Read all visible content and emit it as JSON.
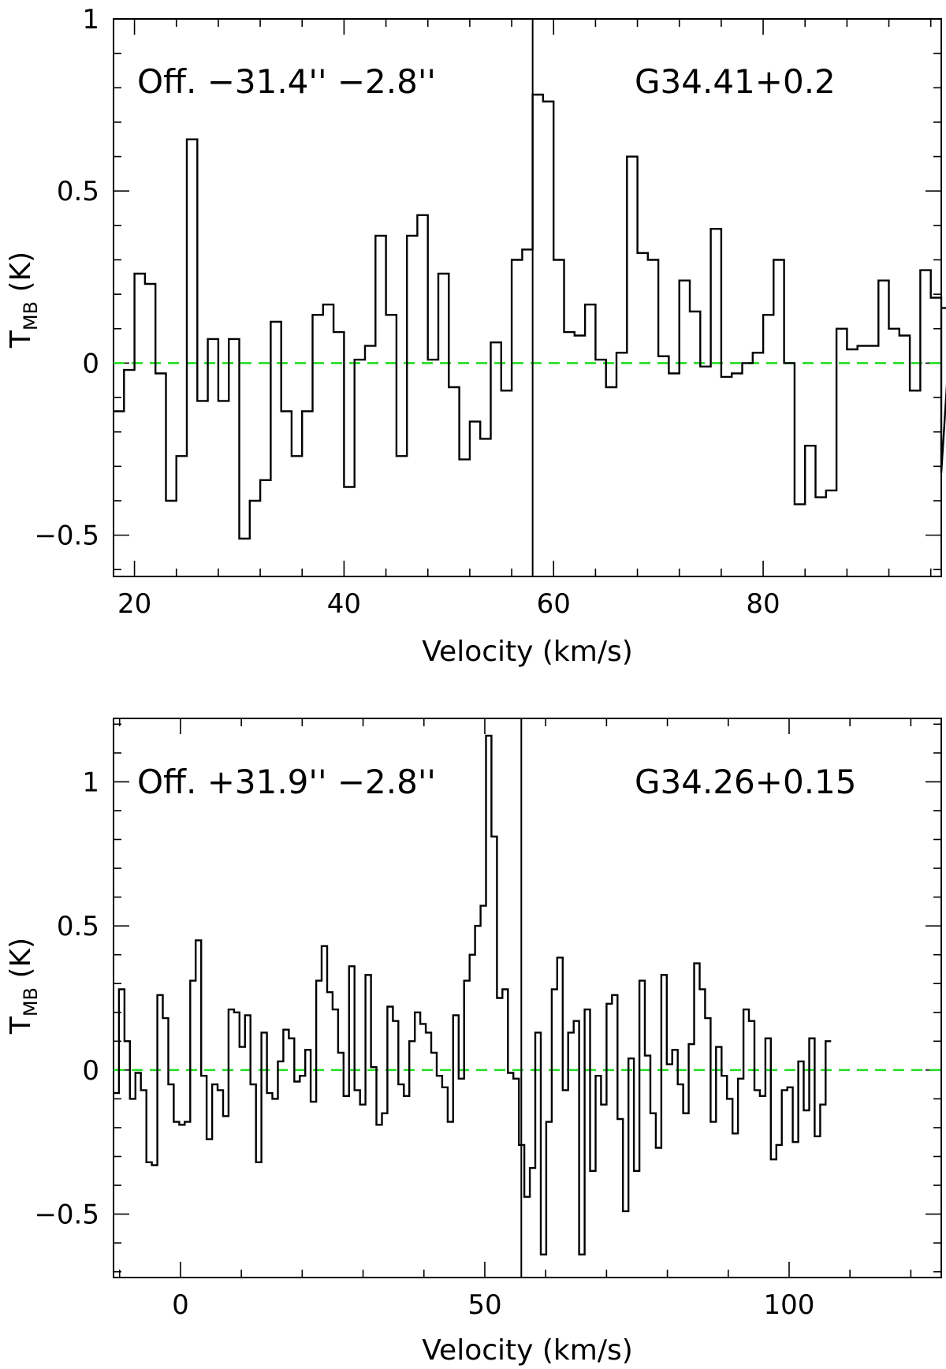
{
  "chart_data": [
    {
      "type": "line",
      "subtype": "step-spectrum",
      "xlabel": "Velocity (km/s)",
      "ylabel": "T",
      "ylabel_sub": "MB",
      "ylabel_unit": " (K)",
      "xlim": [
        18,
        97
      ],
      "ylim": [
        -0.62,
        1.0
      ],
      "x_ticks": [
        20,
        40,
        60,
        80
      ],
      "y_ticks": [
        -0.5,
        0,
        0.5,
        1
      ],
      "y_tick_labels": [
        "−0.5",
        "0",
        "0.5",
        "1"
      ],
      "annotation_left": "Off. −31.4'' −2.8''",
      "annotation_right": "G34.41+0.2",
      "vline_x": 58,
      "baseline_y": 0,
      "baseline_color": "#22dd22",
      "x_start": 18,
      "step": 1,
      "values": [
        -0.14,
        -0.02,
        0.26,
        0.23,
        -0.03,
        -0.4,
        -0.27,
        0.65,
        -0.11,
        0.07,
        -0.11,
        0.07,
        -0.51,
        -0.4,
        -0.34,
        0.12,
        -0.14,
        -0.27,
        -0.14,
        0.14,
        0.17,
        0.09,
        -0.36,
        0.01,
        0.05,
        0.37,
        0.14,
        -0.27,
        0.37,
        0.43,
        0.01,
        0.26,
        -0.07,
        -0.28,
        -0.17,
        -0.22,
        0.06,
        -0.08,
        0.3,
        0.33,
        0.78,
        0.76,
        0.3,
        0.09,
        0.08,
        0.17,
        0.01,
        -0.07,
        0.03,
        0.6,
        0.32,
        0.3,
        0.02,
        -0.03,
        0.24,
        0.15,
        -0.01,
        0.39,
        -0.04,
        -0.03,
        0.0,
        0.03,
        0.14,
        0.3,
        0.0,
        -0.41,
        -0.24,
        -0.39,
        -0.37,
        0.1,
        0.04,
        0.05,
        0.05,
        0.24,
        0.1,
        0.08,
        -0.08,
        0.27,
        0.19,
        -0.32,
        0.16
      ]
    },
    {
      "type": "line",
      "subtype": "step-spectrum",
      "xlabel": "Velocity (km/s)",
      "ylabel": "T",
      "ylabel_sub": "MB",
      "ylabel_unit": " (K)",
      "xlim": [
        -11,
        125
      ],
      "ylim": [
        -0.72,
        1.22
      ],
      "x_ticks": [
        0,
        50,
        100
      ],
      "y_ticks": [
        -0.5,
        0,
        0.5,
        1
      ],
      "y_tick_labels": [
        "−0.5",
        "0",
        "0.5",
        "1"
      ],
      "annotation_left": "Off. +31.9'' −2.8''",
      "annotation_right": "G34.26+0.15",
      "vline_x": 56,
      "baseline_y": 0,
      "baseline_color": "#22dd22",
      "x_start": -11,
      "step": 0.9,
      "values": [
        -0.08,
        0.28,
        0.1,
        -0.1,
        -0.01,
        -0.07,
        -0.32,
        -0.33,
        0.26,
        0.18,
        -0.05,
        -0.18,
        -0.19,
        -0.18,
        0.31,
        0.45,
        -0.02,
        -0.24,
        -0.05,
        -0.07,
        -0.16,
        0.21,
        0.2,
        0.08,
        0.19,
        -0.05,
        -0.32,
        0.13,
        -0.08,
        -0.1,
        0.03,
        0.14,
        0.11,
        -0.04,
        -0.02,
        0.07,
        -0.11,
        0.31,
        0.43,
        0.27,
        0.21,
        0.06,
        -0.09,
        0.36,
        -0.07,
        -0.12,
        0.33,
        0.01,
        -0.19,
        -0.15,
        0.22,
        0.17,
        -0.05,
        -0.09,
        0.1,
        0.2,
        0.16,
        0.13,
        0.06,
        -0.02,
        -0.06,
        -0.18,
        0.19,
        -0.03,
        0.31,
        0.4,
        0.5,
        0.57,
        1.16,
        0.81,
        0.25,
        0.28,
        -0.01,
        -0.03,
        -0.26,
        -0.44,
        -0.34,
        0.13,
        -0.64,
        -0.18,
        0.28,
        0.39,
        -0.07,
        0.13,
        0.17,
        -0.64,
        0.21,
        -0.35,
        -0.02,
        -0.12,
        0.23,
        0.26,
        -0.17,
        -0.49,
        0.04,
        -0.35,
        0.31,
        0.05,
        -0.15,
        -0.27,
        0.33,
        0.02,
        0.07,
        -0.05,
        -0.15,
        0.09,
        0.37,
        0.28,
        0.18,
        -0.18,
        0.08,
        -0.02,
        -0.1,
        -0.22,
        -0.03,
        0.21,
        0.17,
        -0.07,
        -0.09,
        0.11,
        -0.31,
        -0.26,
        -0.07,
        -0.06,
        -0.25,
        0.03,
        -0.14,
        0.11,
        -0.23,
        -0.12,
        0.1
      ]
    }
  ]
}
